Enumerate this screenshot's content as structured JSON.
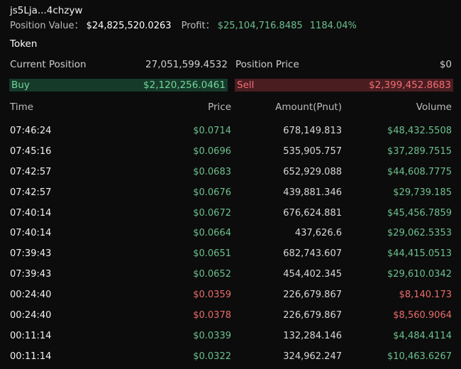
{
  "wallet": {
    "address": "js5Lja...4chzyw"
  },
  "summary": {
    "position_value_label": "Position Value：",
    "position_value": "$24,825,520.0263",
    "profit_label": "Profit：",
    "profit_value": "$25,104,716.8485",
    "profit_pct": "1184.04%"
  },
  "token_label": "Token",
  "position": {
    "current_label": "Current Position",
    "current_value": "27,051,599.4532",
    "price_label": "Position Price",
    "price_value": "$0"
  },
  "buy": {
    "label": "Buy",
    "value": "$2,120,256.0461"
  },
  "sell": {
    "label": "Sell",
    "value": "$2,399,452.8683"
  },
  "table": {
    "headers": {
      "time": "Time",
      "price": "Price",
      "amount": "Amount(Pnut)",
      "volume": "Volume"
    },
    "rows": [
      {
        "time": "07:46:24",
        "price": "$0.0714",
        "amount": "678,149.813",
        "volume": "$48,432.5508",
        "side": "buy"
      },
      {
        "time": "07:45:16",
        "price": "$0.0696",
        "amount": "535,905.757",
        "volume": "$37,289.7515",
        "side": "buy"
      },
      {
        "time": "07:42:57",
        "price": "$0.0683",
        "amount": "652,929.088",
        "volume": "$44,608.7775",
        "side": "buy"
      },
      {
        "time": "07:42:57",
        "price": "$0.0676",
        "amount": "439,881.346",
        "volume": "$29,739.185",
        "side": "buy"
      },
      {
        "time": "07:40:14",
        "price": "$0.0672",
        "amount": "676,624.881",
        "volume": "$45,456.7859",
        "side": "buy"
      },
      {
        "time": "07:40:14",
        "price": "$0.0664",
        "amount": "437,626.6",
        "volume": "$29,062.5353",
        "side": "buy"
      },
      {
        "time": "07:39:43",
        "price": "$0.0651",
        "amount": "682,743.607",
        "volume": "$44,415.0513",
        "side": "buy"
      },
      {
        "time": "07:39:43",
        "price": "$0.0652",
        "amount": "454,402.345",
        "volume": "$29,610.0342",
        "side": "buy"
      },
      {
        "time": "00:24:40",
        "price": "$0.0359",
        "amount": "226,679.867",
        "volume": "$8,140.173",
        "side": "sell"
      },
      {
        "time": "00:24:40",
        "price": "$0.0378",
        "amount": "226,679.867",
        "volume": "$8,560.9064",
        "side": "sell"
      },
      {
        "time": "00:11:14",
        "price": "$0.0339",
        "amount": "132,284.146",
        "volume": "$4,484.4114",
        "side": "buy"
      },
      {
        "time": "00:11:14",
        "price": "$0.0322",
        "amount": "324,962.247",
        "volume": "$10,463.6267",
        "side": "buy"
      }
    ]
  },
  "colors": {
    "buy": "#6cc08e",
    "sell": "#ec6b6b",
    "buy_bg": "#163a2a",
    "sell_bg": "#4a1d21"
  }
}
